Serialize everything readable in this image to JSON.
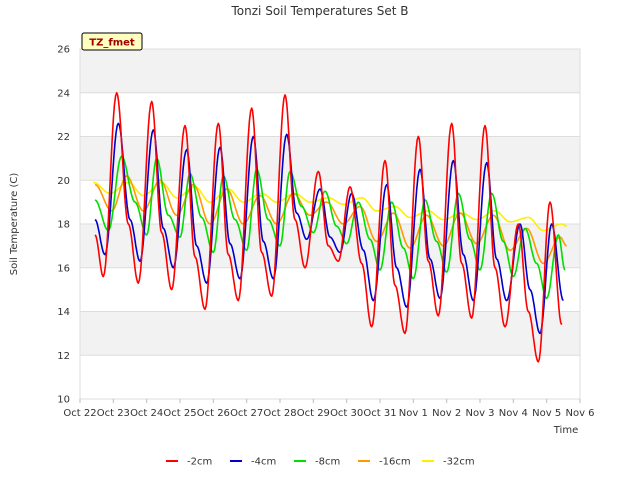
{
  "chart_data": {
    "type": "line",
    "title": "Tonzi Soil Temperatures Set B",
    "xlabel": "Time",
    "ylabel": "Soil Temperature (C)",
    "ylim": [
      10,
      26
    ],
    "yticks": [
      10,
      12,
      14,
      16,
      18,
      20,
      22,
      24,
      26
    ],
    "xlim": [
      0,
      15
    ],
    "xtick_labels": [
      "Oct 22",
      "Oct 23",
      "Oct 24",
      "Oct 25",
      "Oct 26",
      "Oct 27",
      "Oct 28",
      "Oct 29",
      "Oct 30",
      "Oct 31",
      "Nov 1",
      "Nov 2",
      "Nov 3",
      "Nov 4",
      "Nov 5",
      "Nov 6"
    ],
    "grid": "horizontal bands",
    "legend_position": "bottom",
    "badge": "TZ_fmet",
    "series": [
      {
        "name": "-2cm",
        "color": "#ff0000",
        "x": [
          0.45,
          0.7,
          1.1,
          1.45,
          1.75,
          2.15,
          2.45,
          2.75,
          3.15,
          3.45,
          3.75,
          4.15,
          4.45,
          4.75,
          5.15,
          5.45,
          5.75,
          6.15,
          6.45,
          6.75,
          7.15,
          7.45,
          7.75,
          8.1,
          8.45,
          8.75,
          9.15,
          9.45,
          9.75,
          10.15,
          10.45,
          10.75,
          11.15,
          11.45,
          11.75,
          12.15,
          12.45,
          12.75,
          13.15,
          13.45,
          13.75,
          14.1,
          14.45
        ],
        "y": [
          17.5,
          15.6,
          24.0,
          18.0,
          15.3,
          23.6,
          17.6,
          15.0,
          22.5,
          16.5,
          14.1,
          22.6,
          16.6,
          14.5,
          23.3,
          16.7,
          14.7,
          23.9,
          18.2,
          16.0,
          20.4,
          17.0,
          16.3,
          19.7,
          16.2,
          13.3,
          20.9,
          15.2,
          13.0,
          22.0,
          16.3,
          13.8,
          22.6,
          16.2,
          13.7,
          22.5,
          16.0,
          13.3,
          18.0,
          14.0,
          11.7,
          19.0,
          13.4
        ]
      },
      {
        "name": "-4cm",
        "color": "#0000cc",
        "x": [
          0.45,
          0.75,
          1.15,
          1.5,
          1.8,
          2.2,
          2.5,
          2.8,
          3.2,
          3.5,
          3.8,
          4.2,
          4.5,
          4.8,
          5.2,
          5.5,
          5.8,
          6.2,
          6.5,
          6.8,
          7.2,
          7.5,
          7.8,
          8.15,
          8.5,
          8.8,
          9.2,
          9.5,
          9.8,
          10.2,
          10.5,
          10.8,
          11.2,
          11.5,
          11.8,
          12.2,
          12.5,
          12.8,
          13.2,
          13.5,
          13.8,
          14.15,
          14.5
        ],
        "y": [
          18.2,
          16.6,
          22.6,
          18.2,
          16.3,
          22.3,
          17.8,
          16.0,
          21.4,
          17.0,
          15.3,
          21.5,
          17.1,
          15.5,
          22.0,
          17.2,
          15.5,
          22.1,
          18.5,
          17.3,
          19.6,
          17.4,
          16.7,
          19.4,
          16.8,
          14.5,
          19.8,
          16.0,
          14.2,
          20.5,
          16.4,
          14.6,
          20.9,
          16.6,
          14.5,
          20.8,
          16.4,
          14.5,
          18.0,
          15.0,
          13.0,
          18.0,
          14.5
        ]
      },
      {
        "name": "-8cm",
        "color": "#00dd00",
        "x": [
          0.45,
          0.85,
          1.25,
          1.65,
          2.0,
          2.3,
          2.65,
          3.0,
          3.3,
          3.65,
          4.0,
          4.3,
          4.65,
          5.0,
          5.3,
          5.65,
          6.0,
          6.3,
          6.65,
          7.0,
          7.35,
          7.7,
          8.0,
          8.35,
          8.7,
          9.0,
          9.35,
          9.7,
          10.0,
          10.35,
          10.7,
          11.0,
          11.35,
          11.7,
          12.0,
          12.35,
          12.7,
          13.0,
          13.35,
          13.7,
          14.0,
          14.35,
          14.55
        ],
        "y": [
          19.1,
          17.7,
          21.1,
          19.0,
          17.5,
          21.0,
          18.4,
          17.4,
          20.3,
          18.3,
          16.7,
          20.2,
          18.2,
          16.8,
          20.5,
          18.2,
          17.0,
          20.4,
          18.8,
          17.6,
          19.5,
          17.9,
          17.1,
          19.0,
          17.3,
          15.9,
          19.0,
          16.9,
          15.5,
          19.1,
          17.2,
          15.8,
          19.4,
          17.3,
          15.9,
          19.4,
          17.2,
          15.6,
          17.8,
          16.2,
          14.6,
          17.5,
          15.9
        ]
      },
      {
        "name": "-16cm",
        "color": "#ff9900",
        "x": [
          0.45,
          0.95,
          1.4,
          1.9,
          2.4,
          2.9,
          3.4,
          3.9,
          4.4,
          4.9,
          5.4,
          5.9,
          6.4,
          6.9,
          7.4,
          7.9,
          8.4,
          8.9,
          9.4,
          9.9,
          10.4,
          10.9,
          11.4,
          11.9,
          12.4,
          12.9,
          13.4,
          13.9,
          14.4,
          14.6
        ],
        "y": [
          19.8,
          18.6,
          20.2,
          18.6,
          20.0,
          18.4,
          19.8,
          18.0,
          19.6,
          18.0,
          19.3,
          18.0,
          19.4,
          18.4,
          19.0,
          18.0,
          18.8,
          17.2,
          18.5,
          16.9,
          18.4,
          17.0,
          18.5,
          17.1,
          18.4,
          16.8,
          17.8,
          16.2,
          17.4,
          17.0
        ]
      },
      {
        "name": "-32cm",
        "color": "#ffee00",
        "x": [
          0.4,
          0.9,
          1.45,
          1.9,
          2.45,
          2.9,
          3.45,
          3.9,
          4.45,
          4.9,
          5.45,
          5.9,
          6.45,
          6.9,
          7.45,
          7.9,
          8.45,
          8.9,
          9.45,
          9.9,
          10.45,
          10.9,
          11.45,
          11.9,
          12.45,
          12.9,
          13.45,
          13.9,
          14.45,
          14.6
        ],
        "y": [
          19.9,
          19.4,
          19.9,
          19.3,
          19.9,
          19.2,
          19.7,
          19.0,
          19.6,
          19.0,
          19.4,
          19.0,
          19.4,
          19.0,
          19.2,
          18.9,
          19.2,
          18.6,
          18.8,
          18.3,
          18.6,
          18.2,
          18.5,
          18.2,
          18.6,
          18.1,
          18.3,
          17.7,
          18.0,
          17.9
        ]
      }
    ]
  }
}
